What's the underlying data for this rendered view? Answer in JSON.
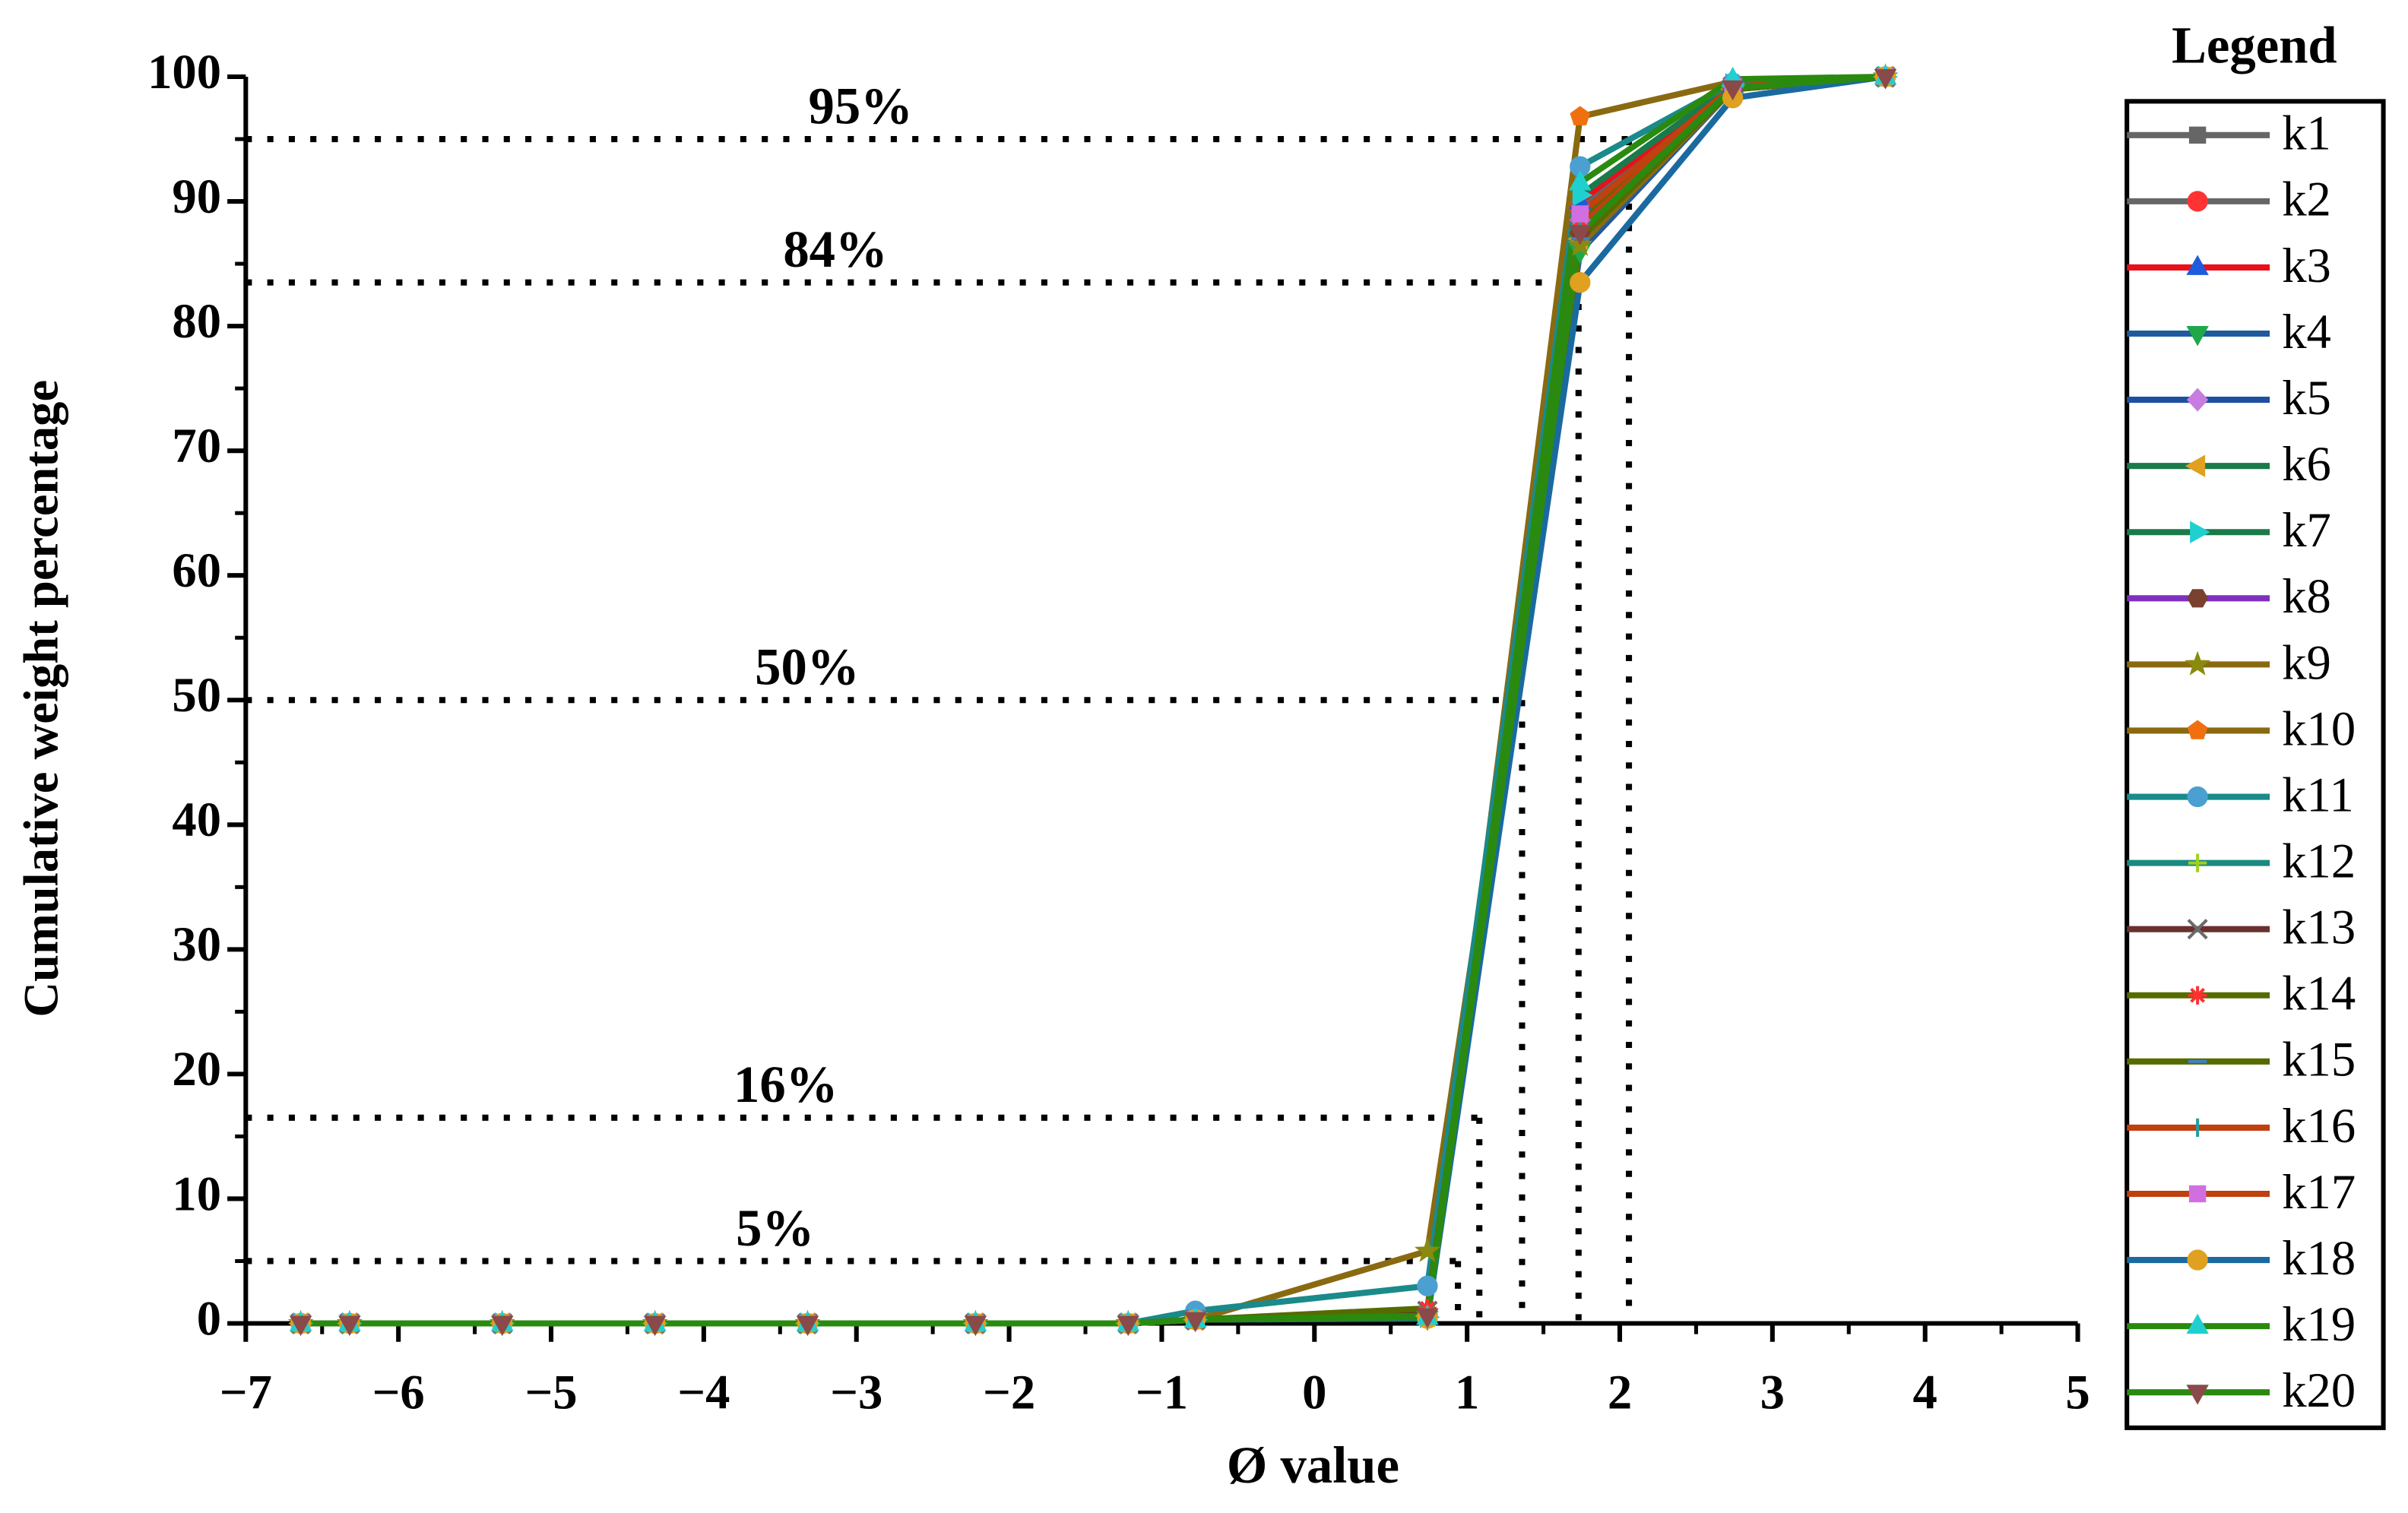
{
  "chart_data": {
    "type": "line",
    "x_label": "Ø value",
    "y_label": "Cumulative weight percentage",
    "legend_title": "Legend",
    "legend_position": "right",
    "xlim": [
      -7,
      5
    ],
    "xticks": [
      {
        "value": -7,
        "label": "−7"
      },
      {
        "value": -6,
        "label": "−6"
      },
      {
        "value": -5,
        "label": "−5"
      },
      {
        "value": -4,
        "label": "−4"
      },
      {
        "value": -3,
        "label": "−3"
      },
      {
        "value": -2,
        "label": "−2"
      },
      {
        "value": -1,
        "label": "−1"
      },
      0,
      1,
      2,
      3,
      4,
      5
    ],
    "ylim": [
      0,
      100
    ],
    "yticks": [
      0,
      10,
      20,
      30,
      40,
      50,
      60,
      70,
      80,
      90,
      100
    ],
    "reference_lines": [
      {
        "label": "5%",
        "value": 5,
        "phi": 0.94
      },
      {
        "label": "16%",
        "value": 16.5,
        "phi": 1.08
      },
      {
        "label": "50%",
        "value": 50,
        "phi": 1.36
      },
      {
        "label": "84%",
        "value": 83.5,
        "phi": 1.73
      },
      {
        "label": "95%",
        "value": 95,
        "phi": 2.06
      }
    ],
    "x": [
      -6.64,
      -6.32,
      -5.32,
      -4.32,
      -3.32,
      -2.22,
      -1.22,
      -0.78,
      0.74,
      1.74,
      2.74,
      3.74
    ],
    "series": [
      {
        "name": "k1",
        "color": "#666666",
        "marker_color": "#666666",
        "marker": "square",
        "values": [
          0,
          0,
          0,
          0,
          0,
          0,
          0,
          0.3,
          0.5,
          88,
          99.2,
          100
        ]
      },
      {
        "name": "k2",
        "color": "#666666",
        "marker_color": "#ff3333",
        "marker": "circle",
        "values": [
          0,
          0,
          0,
          0,
          0,
          0,
          0,
          0.3,
          0.6,
          89.5,
          99.2,
          100
        ]
      },
      {
        "name": "k3",
        "color": "#e8101a",
        "marker_color": "#1f5bdd",
        "marker": "triangle",
        "values": [
          0,
          0,
          0,
          0,
          0,
          0,
          0,
          0.3,
          0.5,
          90,
          99.3,
          100
        ]
      },
      {
        "name": "k4",
        "color": "#1f5a9e",
        "marker_color": "#1fa84a",
        "marker": "down",
        "values": [
          0,
          0,
          0,
          0,
          0,
          0,
          0,
          0.3,
          0.4,
          86,
          99,
          100
        ]
      },
      {
        "name": "k5",
        "color": "#1f4fa0",
        "marker_color": "#c77de0",
        "marker": "diamond",
        "values": [
          0,
          0,
          0,
          0,
          0,
          0,
          0,
          0.3,
          0.5,
          88.5,
          99.1,
          100
        ]
      },
      {
        "name": "k6",
        "color": "#1a7a4a",
        "marker_color": "#e0a020",
        "marker": "left",
        "values": [
          0,
          0,
          0,
          0,
          0,
          0,
          0,
          0.3,
          0.6,
          87,
          99,
          100
        ]
      },
      {
        "name": "k7",
        "color": "#1a7a4a",
        "marker_color": "#20d0d0",
        "marker": "right",
        "values": [
          0,
          0,
          0,
          0,
          0,
          0,
          0,
          0.3,
          0.5,
          90.5,
          99.4,
          100
        ]
      },
      {
        "name": "k8",
        "color": "#8030c0",
        "marker_color": "#7a4030",
        "marker": "hexagon",
        "values": [
          0,
          0,
          0,
          0,
          0,
          0,
          0,
          0.3,
          0.5,
          87.5,
          99,
          100
        ]
      },
      {
        "name": "k9",
        "color": "#8a6a10",
        "marker_color": "#8a8a10",
        "marker": "star",
        "values": [
          0,
          0,
          0,
          0,
          0,
          0,
          0,
          0.3,
          5.8,
          86.5,
          99,
          100
        ]
      },
      {
        "name": "k10",
        "color": "#8a6a10",
        "marker_color": "#f07010",
        "marker": "pentagon",
        "values": [
          0,
          0,
          0,
          0,
          0,
          0,
          0,
          0.3,
          0.5,
          96.8,
          99.6,
          100
        ]
      },
      {
        "name": "k11",
        "color": "#1a8a8a",
        "marker_color": "#4aa0d0",
        "marker": "circle",
        "values": [
          0,
          0,
          0,
          0,
          0,
          0,
          0,
          1,
          3,
          92.8,
          99.5,
          100
        ]
      },
      {
        "name": "k12",
        "color": "#1a8a80",
        "marker_color": "#a0d020",
        "marker": "plus",
        "values": [
          0,
          0,
          0,
          0,
          0,
          0,
          0,
          0.3,
          0.8,
          88,
          99.1,
          100
        ]
      },
      {
        "name": "k13",
        "color": "#6a3030",
        "marker_color": "#6a6a6a",
        "marker": "cross",
        "values": [
          0,
          0,
          0,
          0,
          0,
          0,
          0,
          0.3,
          1,
          89,
          99.2,
          100
        ]
      },
      {
        "name": "k14",
        "color": "#556b00",
        "marker_color": "#ff3030",
        "marker": "asterisk",
        "values": [
          0,
          0,
          0,
          0,
          0,
          0,
          0,
          0.3,
          1.2,
          88.5,
          99.1,
          100
        ]
      },
      {
        "name": "k15",
        "color": "#556b00",
        "marker_color": "#4080c0",
        "marker": "dash",
        "values": [
          0,
          0,
          0,
          0,
          0,
          0,
          0,
          0.3,
          0.5,
          87,
          99,
          100
        ]
      },
      {
        "name": "k16",
        "color": "#c04010",
        "marker_color": "#20a0a0",
        "marker": "bar",
        "values": [
          0,
          0,
          0,
          0,
          0,
          0,
          0,
          0.3,
          0.6,
          88,
          99.1,
          100
        ]
      },
      {
        "name": "k17",
        "color": "#c04010",
        "marker_color": "#d070e0",
        "marker": "square",
        "values": [
          0,
          0,
          0,
          0,
          0,
          0,
          0,
          0.3,
          0.5,
          89,
          99.2,
          100
        ]
      },
      {
        "name": "k18",
        "color": "#1a6aa0",
        "marker_color": "#e0a020",
        "marker": "circle",
        "values": [
          0,
          0,
          0,
          0,
          0,
          0,
          0,
          0.3,
          0.4,
          83.5,
          98.3,
          100
        ]
      },
      {
        "name": "k19",
        "color": "#2a8a10",
        "marker_color": "#20d0d0",
        "marker": "triangle",
        "values": [
          0,
          0,
          0,
          0,
          0,
          0,
          0,
          0.3,
          0.5,
          91.5,
          99.8,
          100
        ]
      },
      {
        "name": "k20",
        "color": "#2a8a10",
        "marker_color": "#8a4a4a",
        "marker": "down",
        "values": [
          0,
          0,
          0,
          0,
          0,
          0,
          0,
          0.3,
          0.6,
          87.5,
          99.1,
          100
        ]
      }
    ]
  }
}
